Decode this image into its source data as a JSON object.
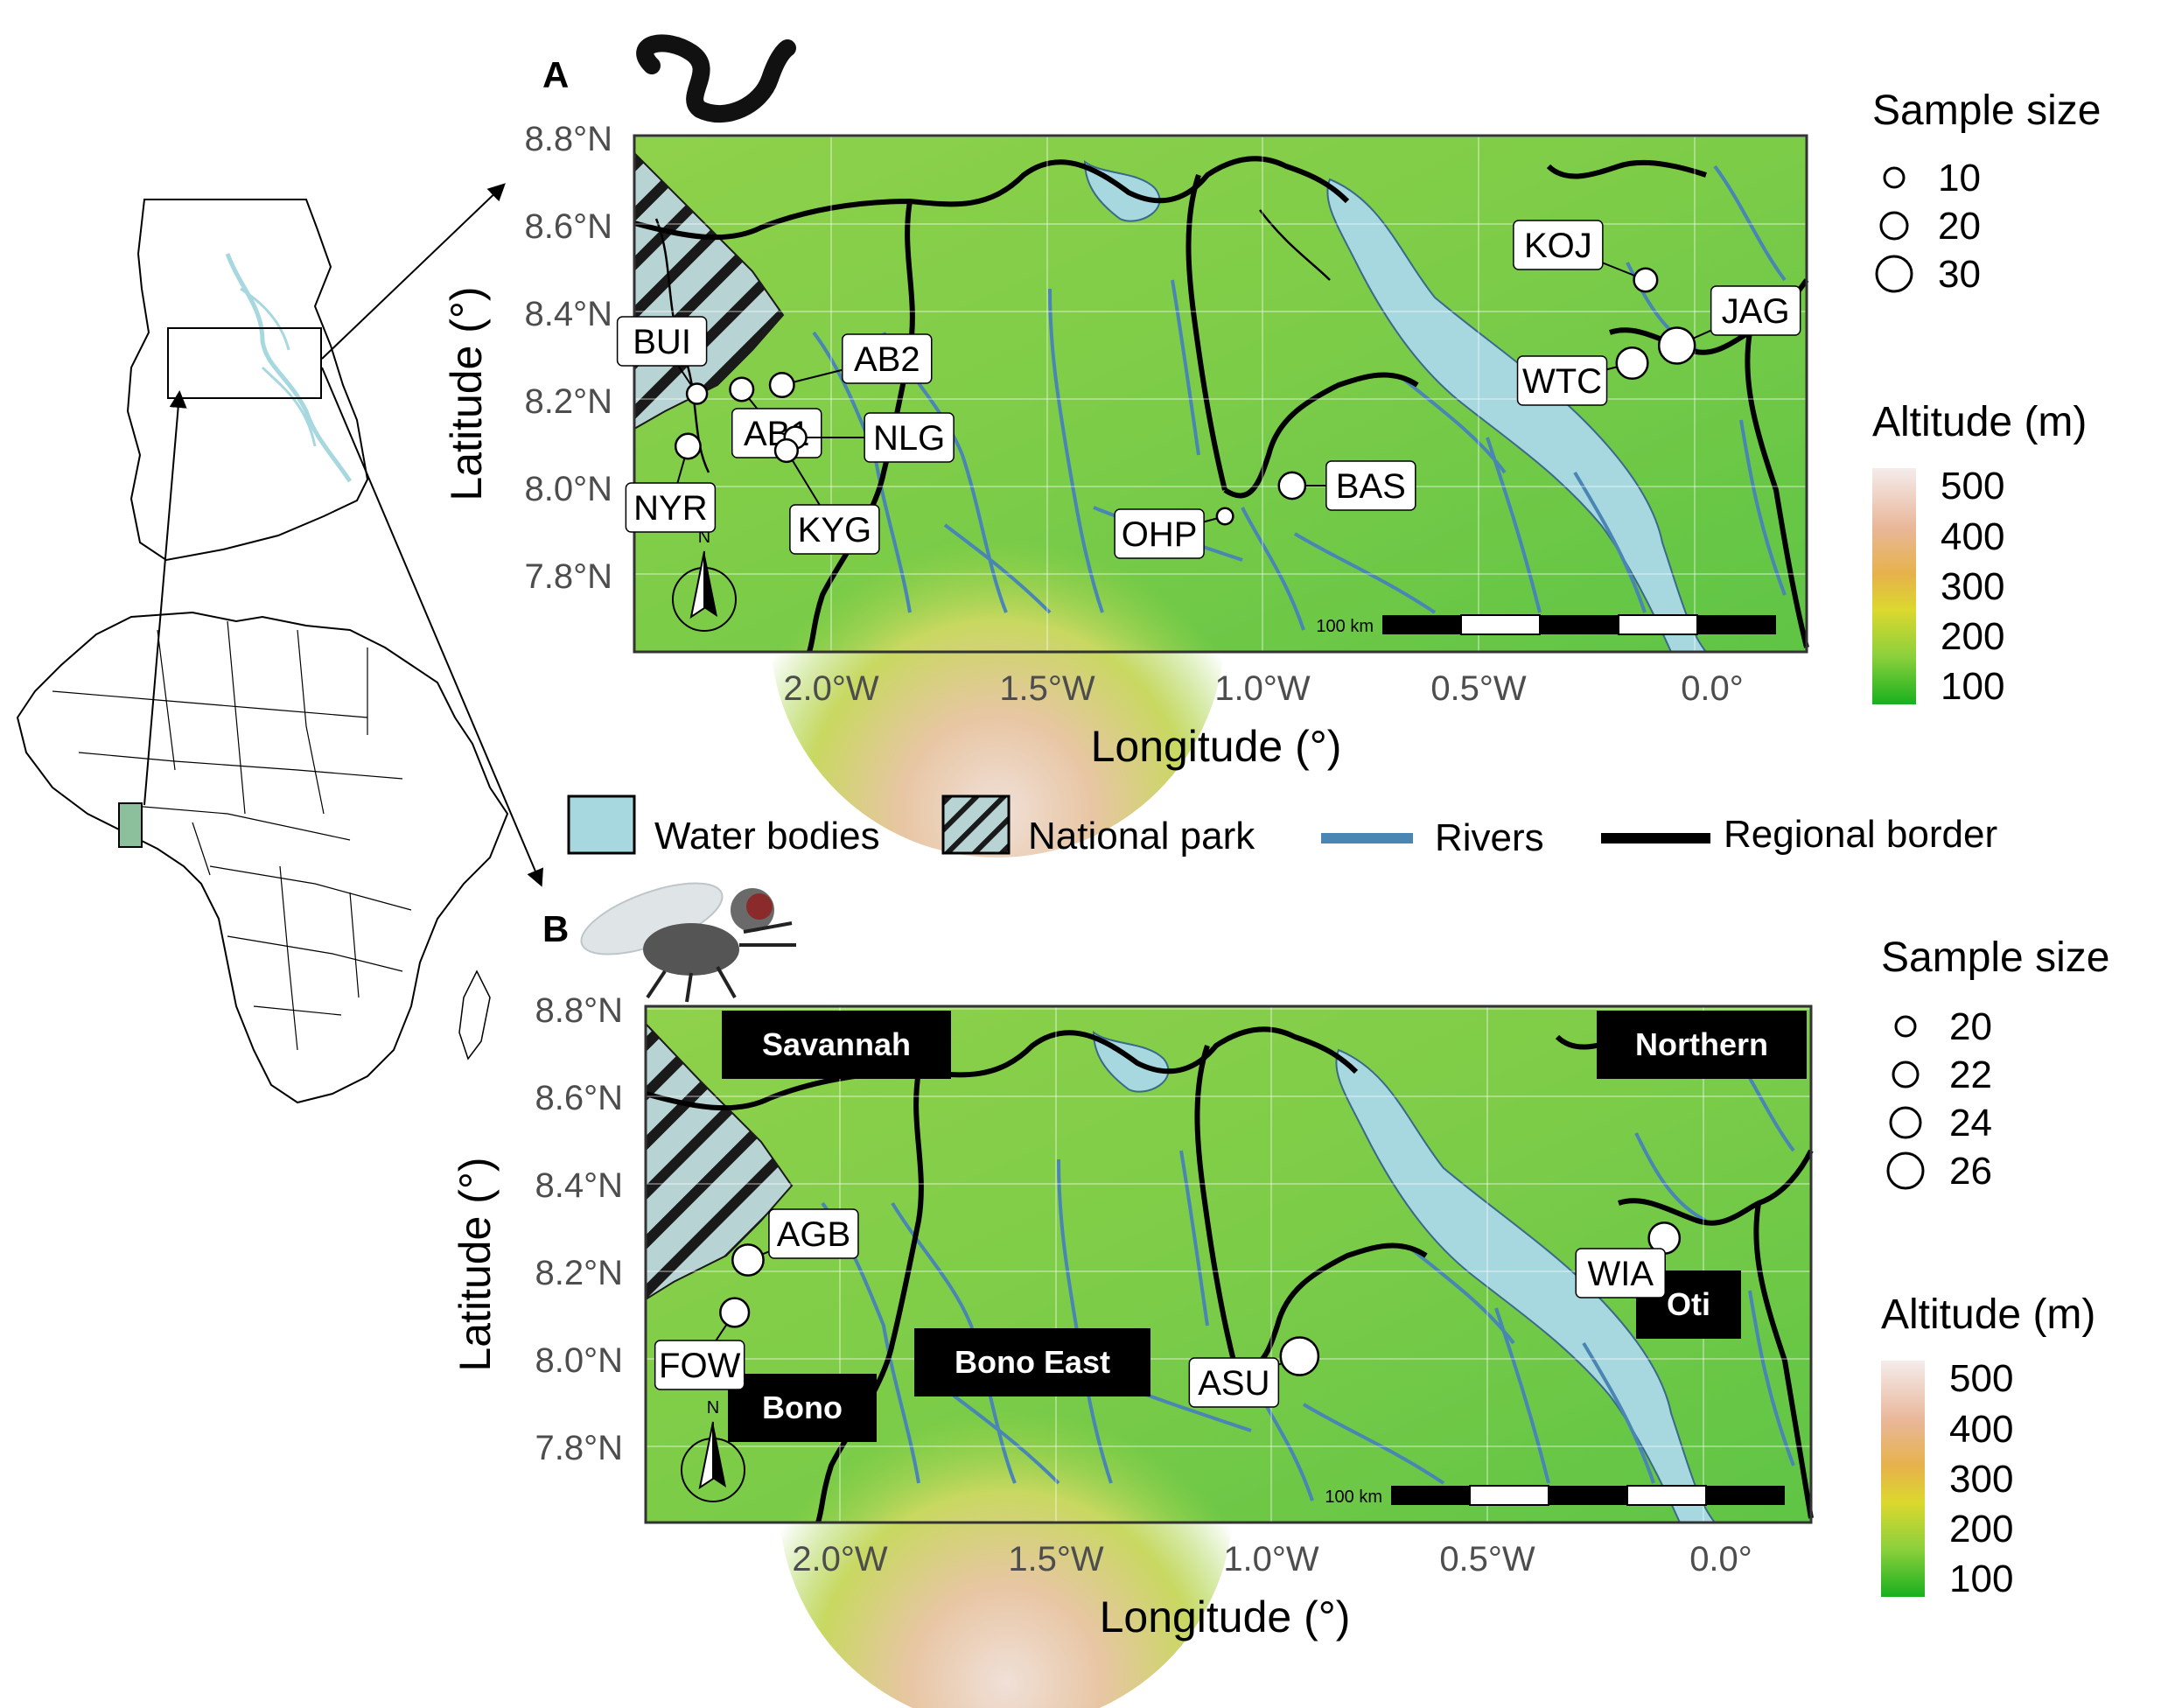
{
  "panels": [
    {
      "letter": "A",
      "organism_icon": "worm-icon",
      "sample_size_title": "Sample size",
      "sample_sizes": [
        "10",
        "20",
        "30"
      ],
      "sites": [
        {
          "code": "BUI",
          "lon": -2.31,
          "lat": 8.23,
          "n": 10
        },
        {
          "code": "AB2",
          "lon": -2.12,
          "lat": 8.25,
          "n": 15
        },
        {
          "code": "AB1",
          "lon": -2.21,
          "lat": 8.24,
          "n": 14
        },
        {
          "code": "NLG",
          "lon": -2.09,
          "lat": 8.13,
          "n": 12
        },
        {
          "code": "NYR",
          "lon": -2.33,
          "lat": 8.11,
          "n": 16
        },
        {
          "code": "KYG",
          "lon": -2.11,
          "lat": 8.1,
          "n": 13
        },
        {
          "code": "KOJ",
          "lon": -0.19,
          "lat": 8.49,
          "n": 14
        },
        {
          "code": "JAG",
          "lon": -0.12,
          "lat": 8.34,
          "n": 30
        },
        {
          "code": "WTC",
          "lon": -0.22,
          "lat": 8.3,
          "n": 24
        },
        {
          "code": "BAS",
          "lon": -0.98,
          "lat": 8.02,
          "n": 18
        },
        {
          "code": "OHP",
          "lon": -1.13,
          "lat": 7.95,
          "n": 5
        }
      ],
      "regions": []
    },
    {
      "letter": "B",
      "organism_icon": "fly-icon",
      "sample_size_title": "Sample size",
      "sample_sizes": [
        "20",
        "22",
        "24",
        "26"
      ],
      "sites": [
        {
          "code": "AGB",
          "lon": -2.22,
          "lat": 8.24,
          "n": 21
        },
        {
          "code": "FOW",
          "lon": -2.25,
          "lat": 8.12,
          "n": 19
        },
        {
          "code": "ASU",
          "lon": -0.98,
          "lat": 8.02,
          "n": 27
        },
        {
          "code": "WIA",
          "lon": -0.16,
          "lat": 8.29,
          "n": 21
        }
      ],
      "regions": [
        "Savannah",
        "Northern",
        "Oti",
        "Bono East",
        "Bono"
      ]
    }
  ],
  "axes": {
    "xlabel": "Longitude (°)",
    "ylabel": "Latitude (°)",
    "x_ticks": [
      "2.0°W",
      "1.5°W",
      "1.0°W",
      "0.5°W",
      "0.0°"
    ],
    "y_ticks": [
      "8.8°N",
      "8.6°N",
      "8.4°N",
      "8.2°N",
      "8.0°N",
      "7.8°N"
    ],
    "xlim": [
      -2.45,
      0.17
    ],
    "ylim": [
      7.64,
      8.82
    ]
  },
  "altitude_legend": {
    "title": "Altitude (m)",
    "ticks": [
      "500",
      "400",
      "300",
      "200",
      "100"
    ]
  },
  "scale_bar": "100 km",
  "north_arrow": "N",
  "legend": {
    "water": "Water bodies",
    "park": "National park",
    "rivers": "Rivers",
    "border": "Regional border"
  },
  "colors": {
    "water": "#a8d8df",
    "river": "#4a86b4",
    "border": "#000000",
    "terrain_low": "#3dbd3d",
    "terrain_mid": "#8fd14a",
    "terrain_high": "#efd6cc",
    "ghana_inset": "#8cbf9c"
  }
}
